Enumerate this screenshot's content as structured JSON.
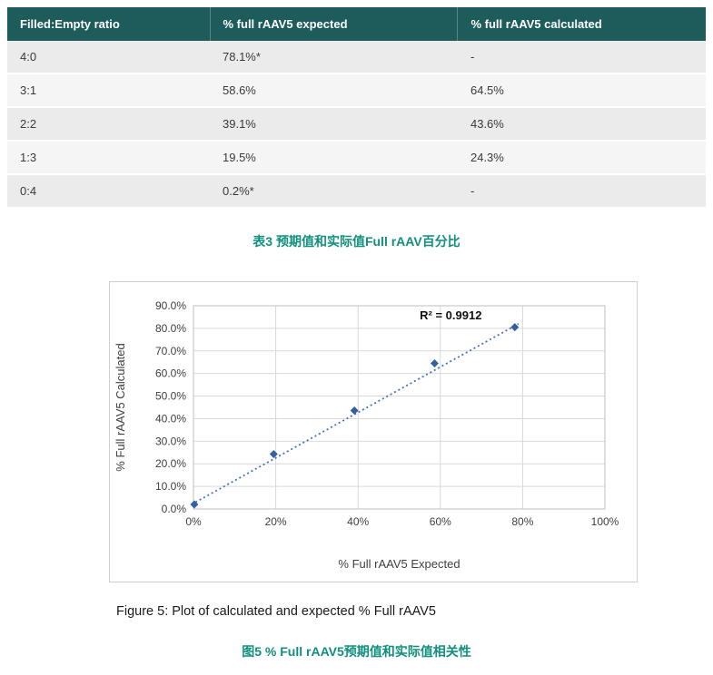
{
  "table": {
    "headers": [
      "Filled:Empty ratio",
      "% full rAAV5 expected",
      "% full rAAV5 calculated"
    ],
    "rows": [
      [
        "4:0",
        "78.1%*",
        "-"
      ],
      [
        "3:1",
        "58.6%",
        "64.5%"
      ],
      [
        "2:2",
        "39.1%",
        "43.6%"
      ],
      [
        "1:3",
        "19.5%",
        "24.3%"
      ],
      [
        "0:4",
        "0.2%*",
        "-"
      ]
    ],
    "caption": "表3 预期值和实际值Full rAAV百分比"
  },
  "figure": {
    "caption_en": "Figure 5: Plot of calculated and expected % Full rAAV5",
    "caption_zh": "图5 % Full rAAV5预期值和实际值相关性"
  },
  "chart_data": {
    "type": "scatter",
    "x": [
      0.2,
      19.5,
      39.1,
      58.6,
      78.1
    ],
    "y": [
      2.0,
      24.3,
      43.6,
      64.5,
      80.5
    ],
    "xlabel": "% Full rAAV5 Expected",
    "ylabel": "% Full rAAV5 Calculated",
    "xlim": [
      0,
      100
    ],
    "ylim": [
      0,
      90
    ],
    "x_ticks": [
      "0%",
      "20%",
      "40%",
      "60%",
      "80%",
      "100%"
    ],
    "y_ticks": [
      "0.0%",
      "10.0%",
      "20.0%",
      "30.0%",
      "40.0%",
      "50.0%",
      "60.0%",
      "70.0%",
      "80.0%",
      "90.0%"
    ],
    "grid": true,
    "legend": "none",
    "annotation": {
      "text": "R² = 0.9912",
      "x": 55,
      "y": 84
    },
    "trendline": {
      "x1": 0.5,
      "y1": 3,
      "x2": 79,
      "y2": 82
    },
    "marker_color": "#35609f",
    "trend_color": "#4472c4",
    "grid_color": "#d9d9d9",
    "plot_border_color": "#bfbfbf"
  },
  "colors": {
    "header_bg": "#1e5c5c",
    "header_text": "#ffffff",
    "caption_teal": "#10907c"
  }
}
